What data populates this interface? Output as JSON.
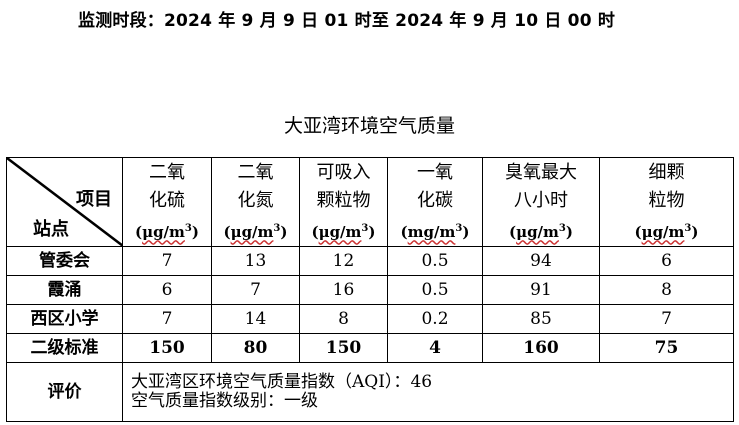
{
  "period": "监测时段：2024 年 9 月 9 日 01 时至 2024 年 9 月 10 日 00 时",
  "title": "大亚湾环境空气质量",
  "corner": {
    "item": "项目",
    "station": "站点"
  },
  "columns": [
    {
      "name_l1": "二氧",
      "name_l2": "化硫",
      "unit_base": "μg/m",
      "unit_sup": "3"
    },
    {
      "name_l1": "二氧",
      "name_l2": "化氮",
      "unit_base": "μg/m",
      "unit_sup": "3"
    },
    {
      "name_l1": "可吸入",
      "name_l2": "颗粒物",
      "unit_base": "μg/m",
      "unit_sup": "3"
    },
    {
      "name_l1": "一氧",
      "name_l2": "化碳",
      "unit_base": "mg/m",
      "unit_sup": "3"
    },
    {
      "name_l1": "臭氧最大",
      "name_l2": "八小时",
      "unit_base": "μg/m",
      "unit_sup": "3"
    },
    {
      "name_l1": "细颗",
      "name_l2": "粒物",
      "unit_base": "μg/m",
      "unit_sup": "3"
    }
  ],
  "rows": [
    {
      "station": "管委会",
      "values": [
        "7",
        "13",
        "12",
        "0.5",
        "94",
        "6"
      ]
    },
    {
      "station": "霞涌",
      "values": [
        "6",
        "7",
        "16",
        "0.5",
        "91",
        "8"
      ]
    },
    {
      "station": "西区小学",
      "values": [
        "7",
        "14",
        "8",
        "0.2",
        "85",
        "7"
      ]
    }
  ],
  "standard": {
    "label": "二级标准",
    "values": [
      "150",
      "80",
      "150",
      "4",
      "160",
      "75"
    ]
  },
  "evaluation": {
    "label": "评价",
    "aqi_label": "大亚湾区环境空气质量指数（AQI）：",
    "aqi_value": "46",
    "level_text": "空气质量指数级别：一级"
  }
}
